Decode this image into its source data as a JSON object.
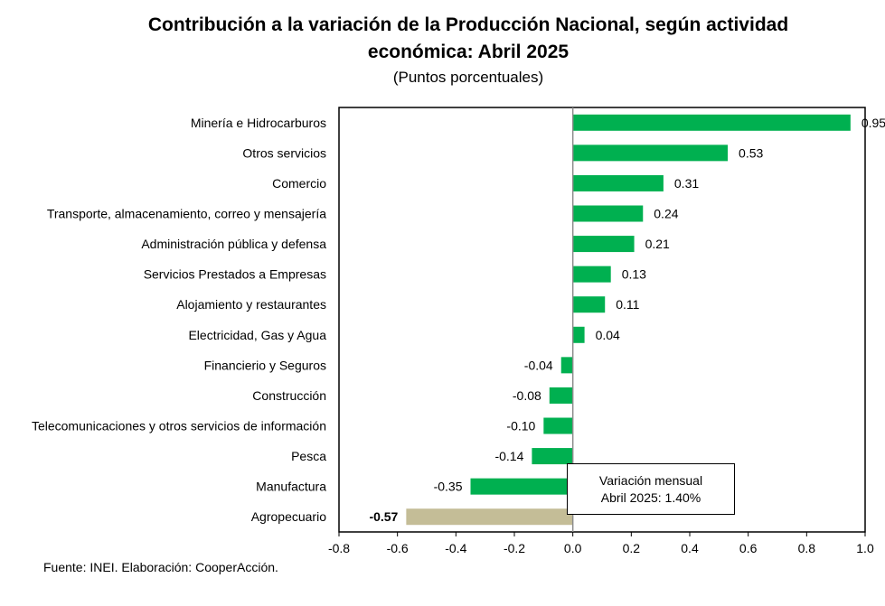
{
  "header": {
    "title_line1": "Contribución a la variación de la Producción Nacional, según actividad",
    "title_line2": "económica: Abril 2025",
    "subtitle": "(Puntos porcentuales)"
  },
  "callout": {
    "line1": "Variación mensual",
    "line2": "Abril 2025: 1.40%"
  },
  "source": "Fuente: INEI. Elaboración: CooperAcción.",
  "colors": {
    "bar": "#00B050",
    "highlight_bar": "#C4BD97"
  },
  "chart_data": {
    "type": "bar",
    "orientation": "horizontal",
    "title": "Contribución a la variación de la Producción Nacional, según actividad económica: Abril 2025",
    "subtitle": "(Puntos porcentuales)",
    "categories": [
      "Minería e Hidrocarburos",
      "Otros servicios",
      "Comercio",
      "Transporte, almacenamiento, correo y mensajería",
      "Administración pública y defensa",
      "Servicios Prestados a Empresas",
      "Alojamiento y restaurantes",
      "Electricidad, Gas y Agua",
      "Financierio y Seguros",
      "Construcción",
      "Telecomunicaciones y otros servicios de información",
      "Pesca",
      "Manufactura",
      "Agropecuario"
    ],
    "values": [
      0.95,
      0.53,
      0.31,
      0.24,
      0.21,
      0.13,
      0.11,
      0.04,
      -0.04,
      -0.08,
      -0.1,
      -0.14,
      -0.35,
      -0.57
    ],
    "value_labels": [
      "0.95",
      "0.53",
      "0.31",
      "0.24",
      "0.21",
      "0.13",
      "0.11",
      "0.04",
      "-0.04",
      "-0.08",
      "-0.10",
      "-0.14",
      "-0.35",
      "-0.57"
    ],
    "highlight_category": "Agropecuario",
    "xlim": [
      -0.8,
      1.0
    ],
    "xticks": [
      -0.8,
      -0.6,
      -0.4,
      -0.2,
      0.0,
      0.2,
      0.4,
      0.6,
      0.8,
      1.0
    ],
    "xtick_labels": [
      "-0.8",
      "-0.6",
      "-0.4",
      "-0.2",
      "0.0",
      "0.2",
      "0.4",
      "0.6",
      "0.8",
      "1.0"
    ],
    "grid": false,
    "legend": "none"
  }
}
